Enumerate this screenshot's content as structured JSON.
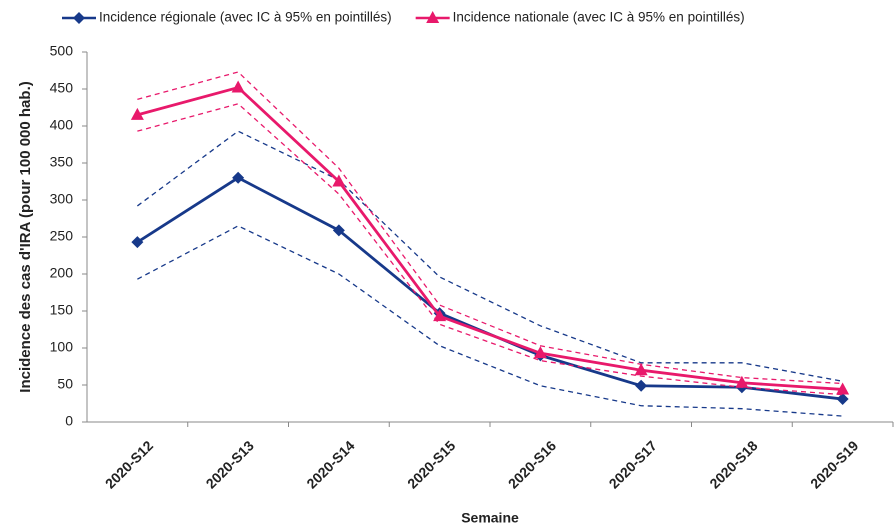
{
  "chart_data": {
    "type": "line",
    "y_label": "Incidence des cas d'IRA (pour 100 000 hab.)",
    "x_label": "Semaine",
    "categories": [
      "2020-S12",
      "2020-S13",
      "2020-S14",
      "2020-S15",
      "2020-S16",
      "2020-S17",
      "2020-S18",
      "2020-S19"
    ],
    "series": [
      {
        "name": "Incidence régionale (avec IC à 95% en pointillés)",
        "color": "#17398a",
        "marker": "diamond",
        "values": [
          243,
          330,
          259,
          147,
          90,
          49,
          47,
          31
        ],
        "ci_upper": [
          292,
          393,
          327,
          196,
          130,
          80,
          80,
          55
        ],
        "ci_lower": [
          193,
          265,
          200,
          103,
          49,
          22,
          18,
          8
        ]
      },
      {
        "name": "Incidence nationale (avec IC à 95% en pointillés)",
        "color": "#e8196b",
        "marker": "triangle",
        "values": [
          415,
          452,
          325,
          143,
          93,
          70,
          53,
          44
        ],
        "ci_upper": [
          436,
          473,
          343,
          158,
          103,
          78,
          60,
          52
        ],
        "ci_lower": [
          393,
          430,
          308,
          132,
          83,
          62,
          47,
          37
        ]
      }
    ],
    "ylim": [
      0,
      500
    ],
    "yticks": [
      0,
      50,
      100,
      150,
      200,
      250,
      300,
      350,
      400,
      450,
      500
    ],
    "grid": false,
    "legend": "top"
  }
}
